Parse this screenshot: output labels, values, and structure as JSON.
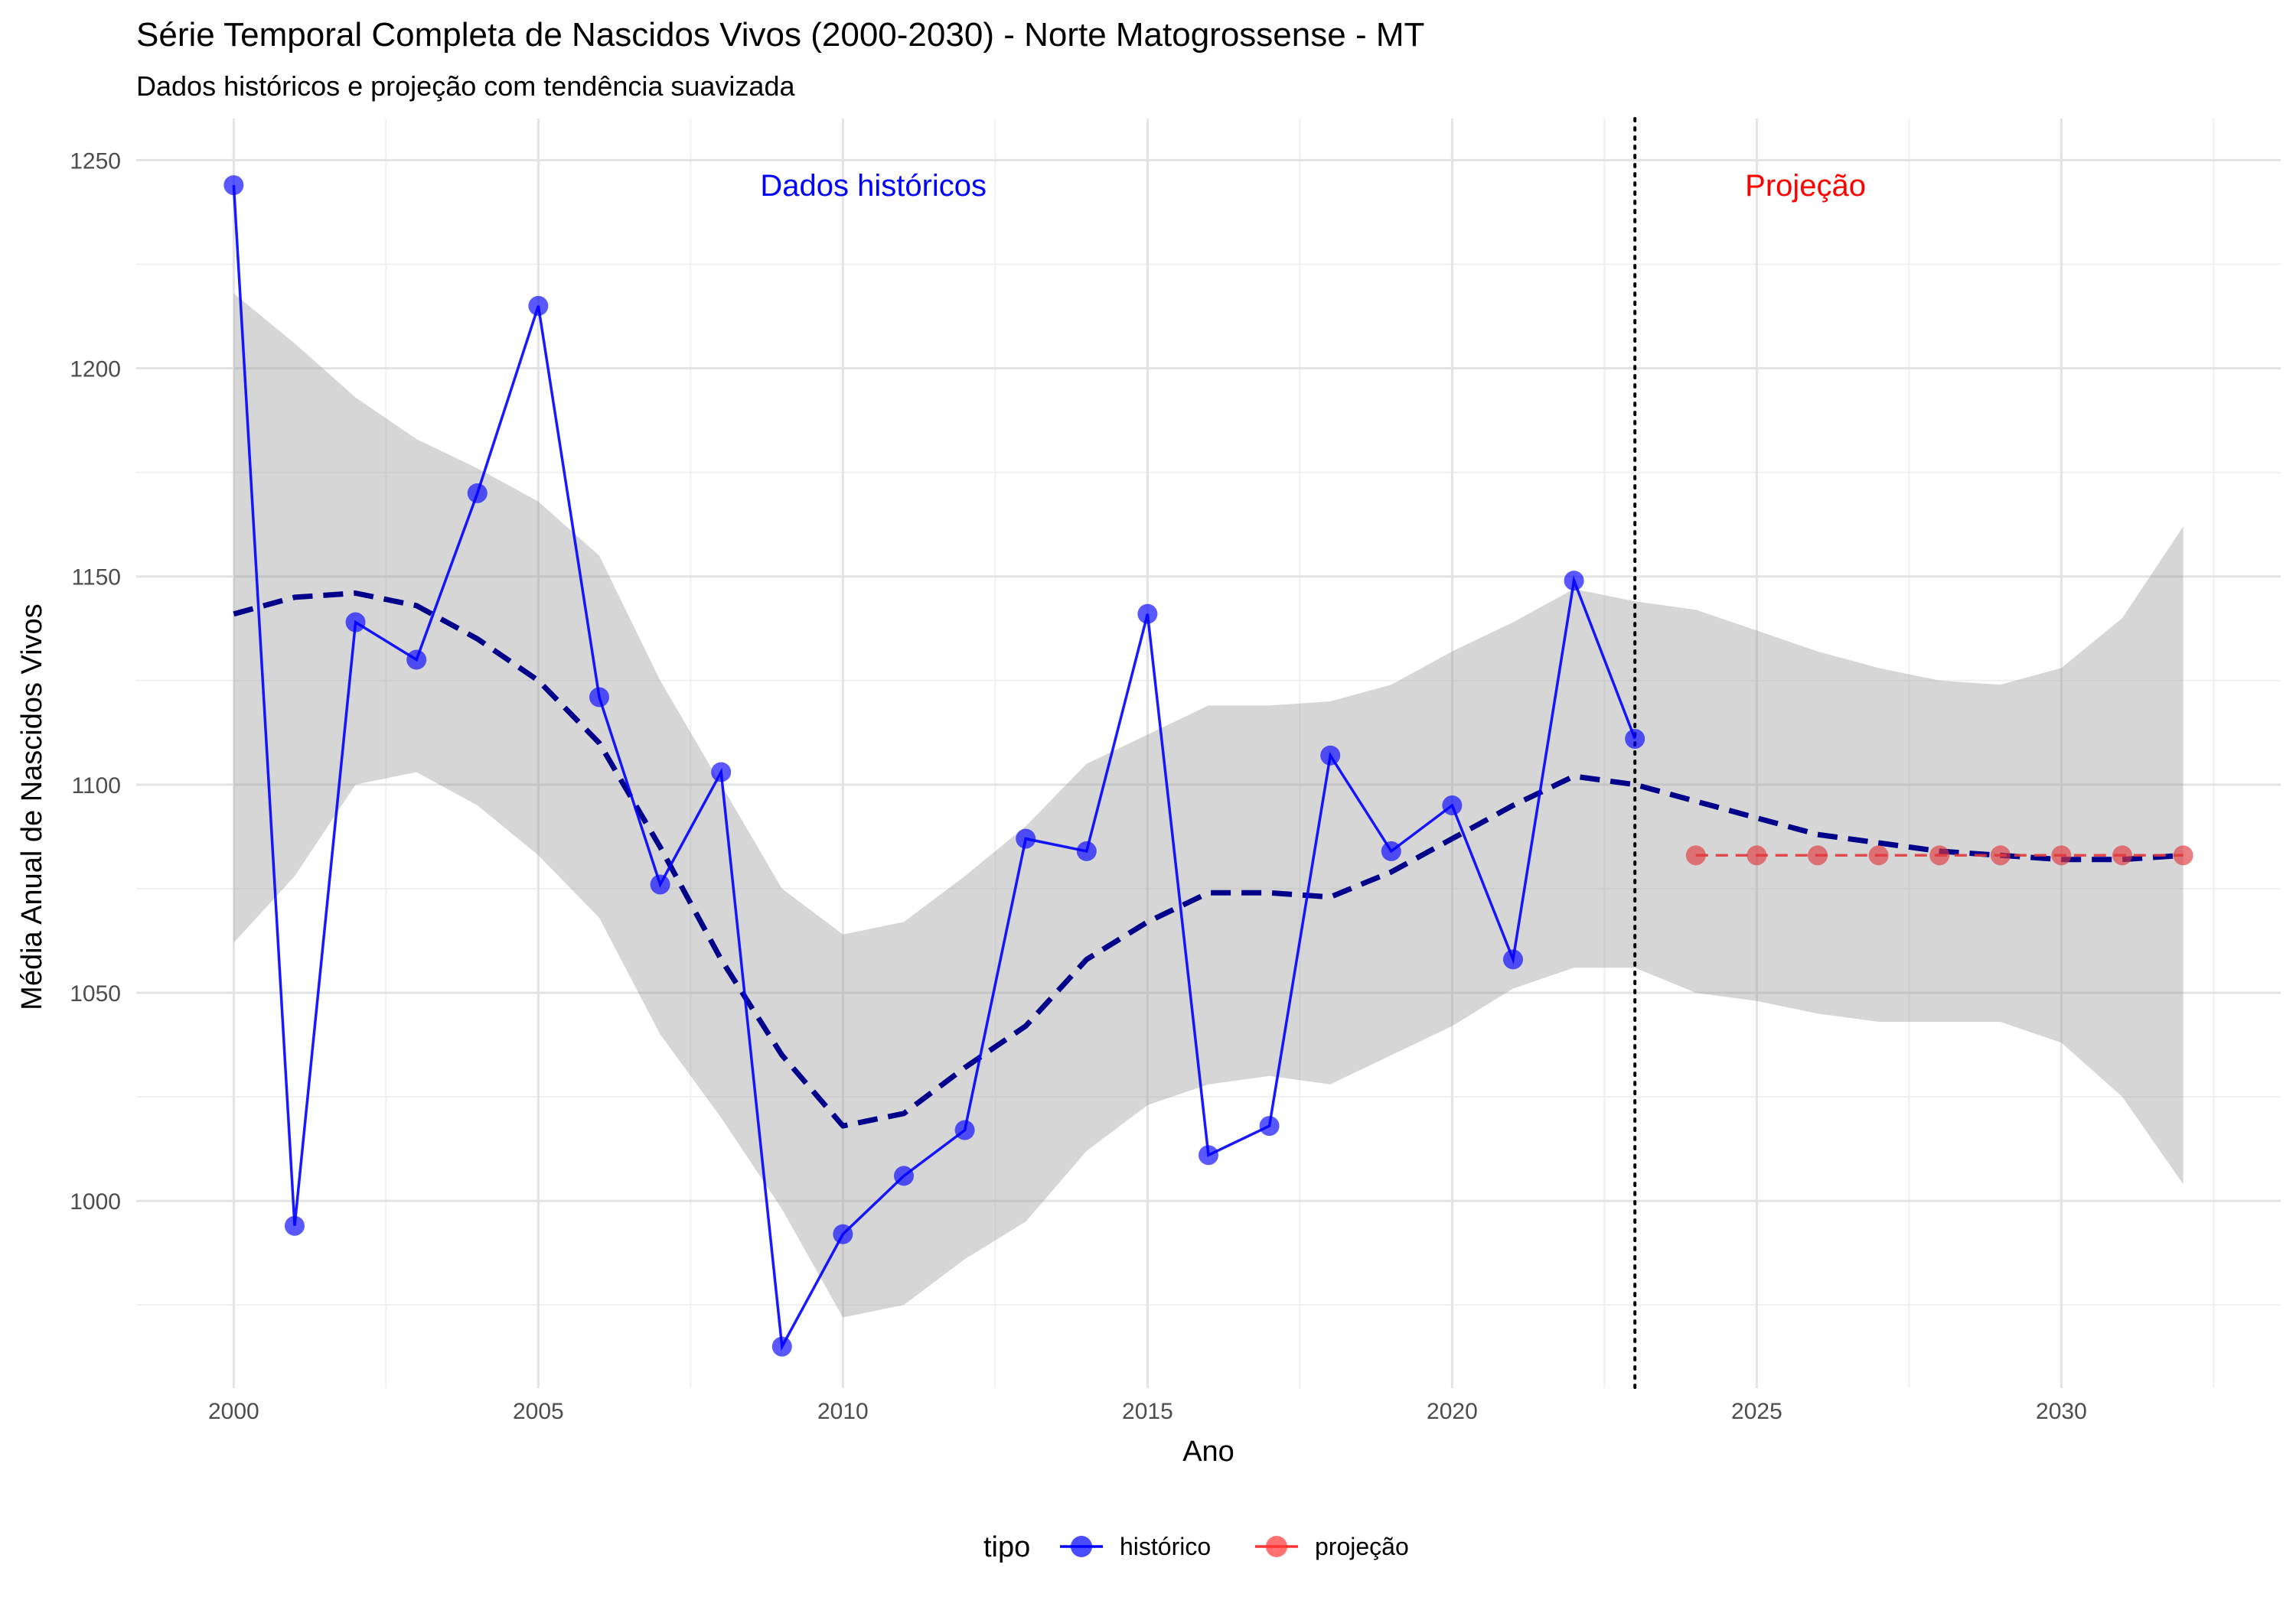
{
  "chart_data": {
    "type": "line",
    "title": "Série Temporal Completa de Nascidos Vivos (2000-2030) -  Norte Matogrossense - MT",
    "subtitle": "Dados históricos e projeção com tendência suavizada",
    "xlabel": "Ano",
    "ylabel": "Média Anual de Nascidos Vivos",
    "xlim": [
      1998.4,
      2033.6
    ],
    "ylim": [
      955,
      1260
    ],
    "x_ticks": [
      2000,
      2005,
      2010,
      2015,
      2020,
      2025,
      2030
    ],
    "y_ticks": [
      1000,
      1050,
      1100,
      1150,
      1200,
      1250
    ],
    "grid": true,
    "legend": {
      "title": "tipo",
      "position": "bottom",
      "items": [
        {
          "label": "histórico",
          "color": "#0000ff"
        },
        {
          "label": "projeção",
          "color": "#ff3333"
        }
      ]
    },
    "annotations": [
      {
        "text": "Dados históricos",
        "x": 2010.5,
        "y": 1244,
        "color": "#0000ff"
      },
      {
        "text": "Projeção",
        "x": 2025.8,
        "y": 1244,
        "color": "#ff0000"
      }
    ],
    "divider_year": 2023,
    "series": [
      {
        "name": "histórico",
        "color": "#0000ff",
        "x": [
          2000,
          2001,
          2002,
          2003,
          2004,
          2005,
          2006,
          2007,
          2008,
          2009,
          2010,
          2011,
          2012,
          2013,
          2014,
          2015,
          2016,
          2017,
          2018,
          2019,
          2020,
          2021,
          2022,
          2023
        ],
        "values": [
          1244,
          994,
          1139,
          1130,
          1170,
          1215,
          1121,
          1076,
          1103,
          965,
          992,
          1006,
          1017,
          1087,
          1084,
          1141,
          1011,
          1018,
          1107,
          1084,
          1095,
          1058,
          1149,
          1111
        ]
      },
      {
        "name": "projeção",
        "color": "#e0393e",
        "x": [
          2024,
          2025,
          2026,
          2027,
          2028,
          2029,
          2030,
          2031,
          2032
        ],
        "values": [
          1083,
          1083,
          1083,
          1083,
          1083,
          1083,
          1083,
          1083,
          1083
        ]
      }
    ],
    "trend": {
      "color": "#00008b",
      "x": [
        2000,
        2001,
        2002,
        2003,
        2004,
        2005,
        2006,
        2007,
        2008,
        2009,
        2010,
        2011,
        2012,
        2013,
        2014,
        2015,
        2016,
        2017,
        2018,
        2019,
        2020,
        2021,
        2022,
        2023,
        2024,
        2025,
        2026,
        2027,
        2028,
        2029,
        2030,
        2031,
        2032
      ],
      "values": [
        1141,
        1145,
        1146,
        1143,
        1135,
        1125,
        1110,
        1085,
        1058,
        1035,
        1018,
        1021,
        1032,
        1042,
        1058,
        1067,
        1074,
        1074,
        1073,
        1079,
        1087,
        1095,
        1102,
        1100,
        1096,
        1092,
        1088,
        1086,
        1084,
        1083,
        1082,
        1082,
        1083
      ],
      "ci_lower": [
        1062,
        1078,
        1100,
        1103,
        1095,
        1083,
        1068,
        1040,
        1020,
        998,
        972,
        975,
        986,
        995,
        1012,
        1023,
        1028,
        1030,
        1028,
        1035,
        1042,
        1051,
        1056,
        1056,
        1050,
        1048,
        1045,
        1043,
        1043,
        1043,
        1038,
        1025,
        1004
      ],
      "ci_upper": [
        1218,
        1206,
        1193,
        1183,
        1176,
        1168,
        1155,
        1125,
        1100,
        1075,
        1064,
        1067,
        1078,
        1090,
        1105,
        1112,
        1119,
        1119,
        1120,
        1124,
        1132,
        1139,
        1147,
        1144,
        1142,
        1137,
        1132,
        1128,
        1125,
        1124,
        1128,
        1140,
        1162
      ]
    }
  }
}
